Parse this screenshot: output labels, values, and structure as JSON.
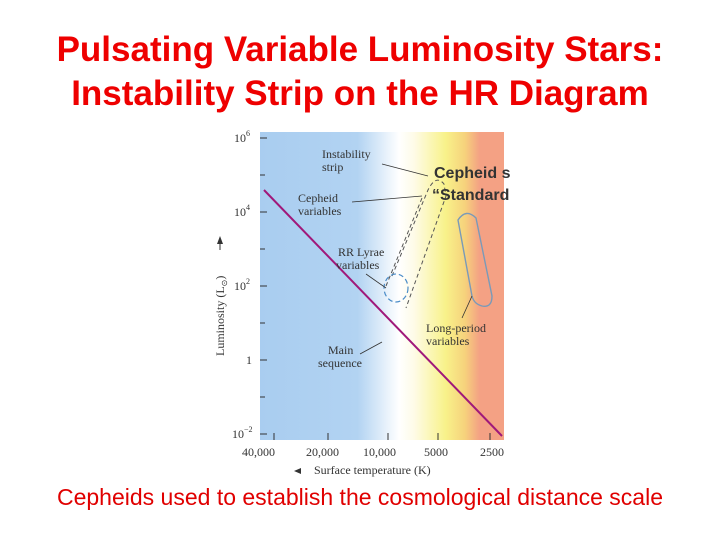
{
  "title": {
    "line1": "Pulsating Variable Luminosity Stars:",
    "line2": "Instability Strip on the HR Diagram"
  },
  "footer": "Cepheids used to establish the cosmological distance scale",
  "callout": {
    "line1": "Cepheid stars are",
    "line2": "“Standard Candles”"
  },
  "diagram": {
    "y_axis": {
      "label_main": "Luminosity (L",
      "label_sub": "⊙",
      "label_close": ")",
      "ticks": [
        {
          "base": "10",
          "exp": "6"
        },
        {
          "base": "10",
          "exp": "4"
        },
        {
          "base": "10",
          "exp": "2"
        },
        {
          "base": "1",
          "exp": ""
        },
        {
          "base": "10",
          "exp": "−2"
        }
      ]
    },
    "x_axis": {
      "label": "Surface temperature (K)",
      "ticks": [
        "40,000",
        "20,000",
        "10,000",
        "5000",
        "2500"
      ]
    },
    "labels": {
      "instability": [
        "Instability",
        "strip"
      ],
      "cepheid": [
        "Cepheid",
        "variables"
      ],
      "rr_lyrae": [
        "RR Lyrae",
        "variables"
      ],
      "long_period": [
        "Long-period",
        "variables"
      ],
      "main_sequence": [
        "Main",
        "sequence"
      ]
    },
    "colors": {
      "blue": "#a9cdf0",
      "yellow": "#f8f28a",
      "orange": "#f4a184",
      "main_sequence": "#a0187a",
      "title": "#ee0000"
    }
  }
}
